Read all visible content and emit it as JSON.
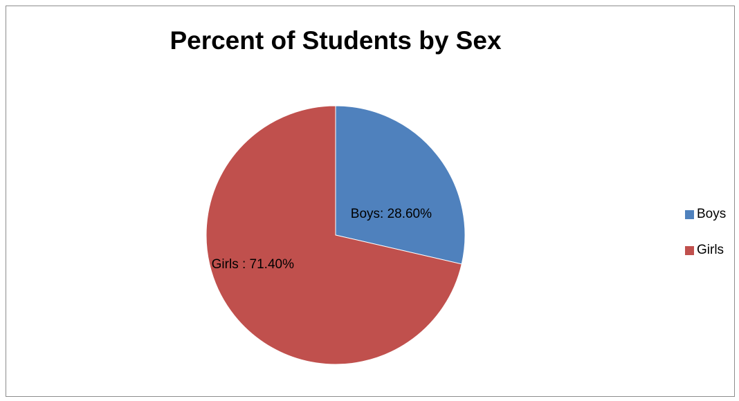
{
  "chart_data": {
    "type": "pie",
    "title": "Percent of Students by Sex",
    "slices": [
      {
        "label": "Boys",
        "value": 28.6,
        "data_label": "Boys: 28.60%",
        "color": "#4f81bd"
      },
      {
        "label": "Girls",
        "value": 71.4,
        "data_label": "Girls : 71.40%",
        "color": "#c0504d"
      }
    ],
    "legend_position": "right",
    "legend": [
      "Boys",
      "Girls"
    ]
  }
}
